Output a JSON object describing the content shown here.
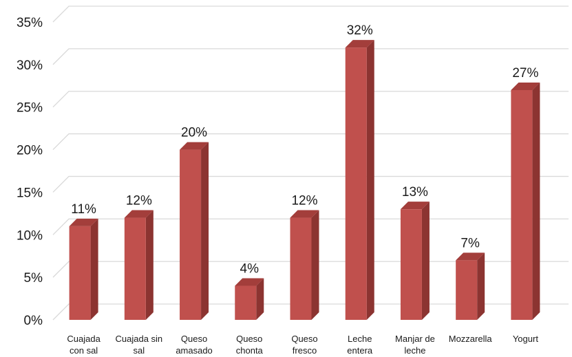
{
  "chart_data": {
    "type": "bar",
    "style": "3d-column",
    "categories": [
      [
        "Cuajada",
        "con sal"
      ],
      [
        "Cuajada sin",
        "sal"
      ],
      [
        "Queso",
        "amasado"
      ],
      [
        "Queso",
        "chonta"
      ],
      [
        "Queso",
        "fresco"
      ],
      [
        "Leche",
        "entera"
      ],
      [
        "Manjar de",
        "leche"
      ],
      [
        "Mozzarella"
      ],
      [
        "Yogurt"
      ]
    ],
    "values": [
      11,
      12,
      20,
      4,
      12,
      32,
      13,
      7,
      27
    ],
    "value_labels": [
      "11%",
      "12%",
      "20%",
      "4%",
      "12%",
      "32%",
      "13%",
      "7%",
      "27%"
    ],
    "y_ticks": [
      "0%",
      "5%",
      "10%",
      "15%",
      "20%",
      "25%",
      "30%",
      "35%"
    ],
    "ylim": [
      0,
      35
    ],
    "grid": true,
    "legend": "none",
    "title": "",
    "xlabel": "",
    "ylabel": ""
  },
  "colors": {
    "bar_front": "#c0504d",
    "bar_side": "#8c3431",
    "bar_top": "#a33e3b",
    "grid": "#d9d9d9",
    "text": "#1a1a1a"
  }
}
